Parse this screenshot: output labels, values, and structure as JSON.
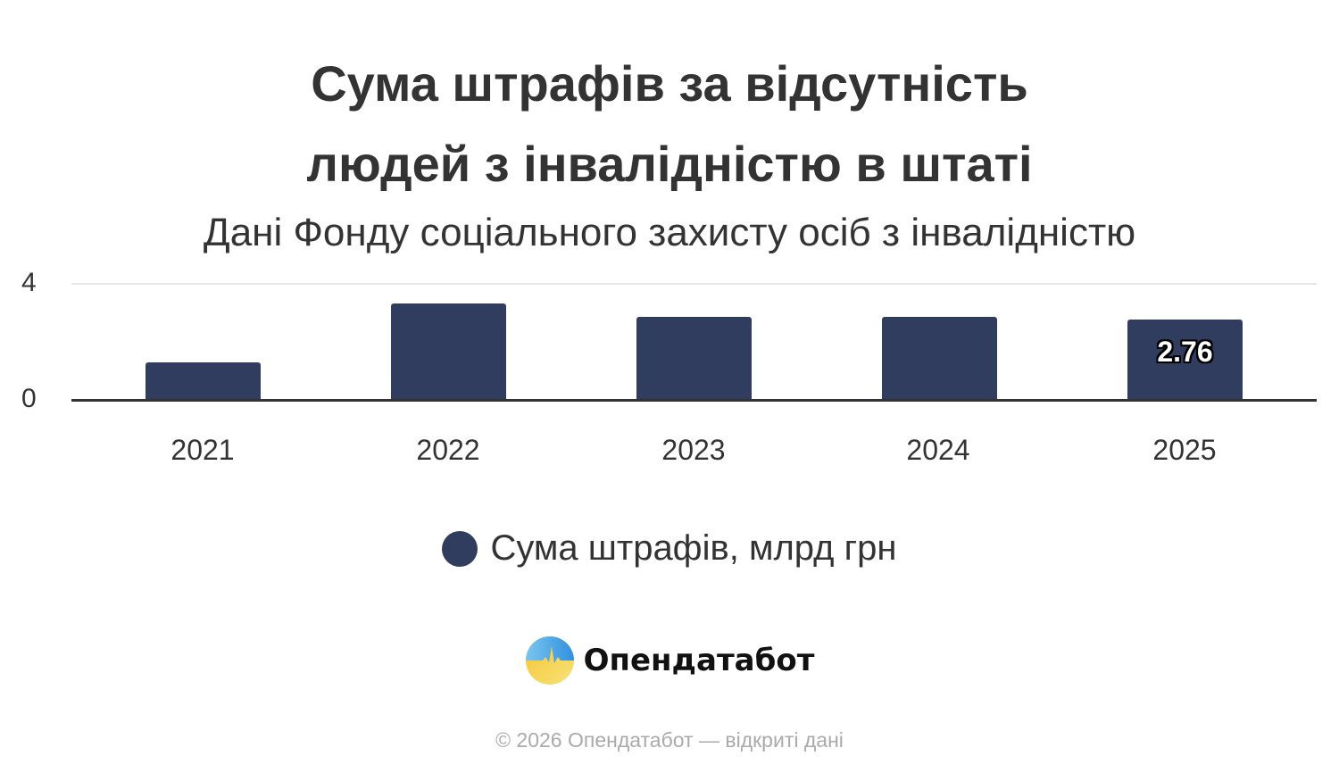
{
  "header": {
    "title_line1": "Сума штрафів за відсутність",
    "title_line2": "людей з інвалідністю в штаті",
    "subtitle": "Дані Фонду соціального захисту осіб з інвалідністю"
  },
  "axis": {
    "y_ticks": [
      "0",
      "4"
    ]
  },
  "bars": [
    {
      "year": "2021",
      "label": ""
    },
    {
      "year": "2022",
      "label": ""
    },
    {
      "year": "2023",
      "label": ""
    },
    {
      "year": "2024",
      "label": ""
    },
    {
      "year": "2025",
      "label": "2.76"
    }
  ],
  "legend": {
    "label": "Сума штрафів, млрд грн",
    "color": "#313d5e"
  },
  "brand": {
    "name": "Опендатабот"
  },
  "footer": {
    "copyright": "© 2026 Опендатабот — відкриті дані"
  },
  "chart_data": {
    "type": "bar",
    "title": "Сума штрафів за відсутність людей з інвалідністю в штаті",
    "subtitle": "Дані Фонду соціального захисту осіб з інвалідністю",
    "categories": [
      "2021",
      "2022",
      "2023",
      "2024",
      "2025"
    ],
    "series": [
      {
        "name": "Сума штрафів, млрд грн",
        "values": [
          1.28,
          3.32,
          2.85,
          2.85,
          2.76
        ],
        "color": "#313d5e"
      }
    ],
    "data_labels": {
      "2025": "2.76"
    },
    "xlabel": "",
    "ylabel": "",
    "ylim": [
      0,
      4
    ],
    "y_ticks": [
      0,
      4
    ],
    "grid": true,
    "legend_position": "bottom"
  }
}
